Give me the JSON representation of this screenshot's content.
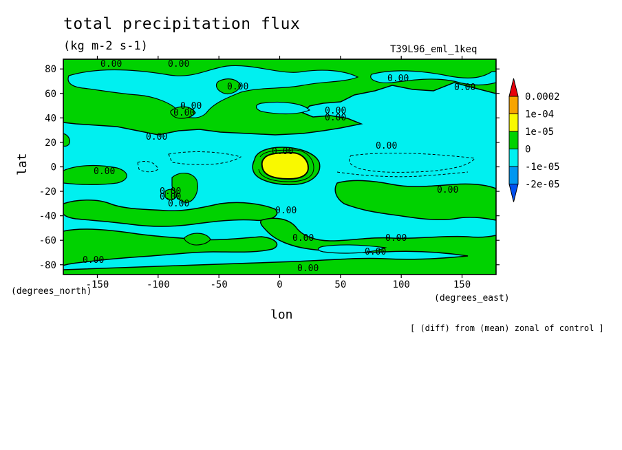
{
  "chart_data": {
    "type": "heatmap",
    "title": "total precipitation flux",
    "subtitle": "(kg m-2 s-1)",
    "run_label": "T39L96_eml_1keq",
    "footnote": "[ (diff) from (mean) zonal of control ]",
    "xlabel": "lon",
    "ylabel": "lat",
    "x_unit_label": "(degrees_east)",
    "y_unit_label": "(degrees_north)",
    "xlim": [
      -178,
      178
    ],
    "ylim": [
      -88,
      88
    ],
    "x_ticks": [
      -150,
      -100,
      -50,
      0,
      50,
      100,
      150
    ],
    "y_ticks": [
      -80,
      -60,
      -40,
      -20,
      0,
      20,
      40,
      60,
      80
    ],
    "x_tick_labels": [
      "-150",
      "-100",
      "-50",
      "0",
      "50",
      "100",
      "150"
    ],
    "y_tick_labels": [
      "-80",
      "-60",
      "-40",
      "-20",
      "0",
      "20",
      "40",
      "60",
      "80"
    ],
    "colorbar": {
      "levels": [
        "0.0002",
        "1e-04",
        "1e-05",
        "0",
        "-1e-05",
        "-2e-05"
      ],
      "colors": [
        "#e8000b",
        "#f7a400",
        "#f9f900",
        "#00d200",
        "#00f0f0",
        "#0097f0",
        "#0050f0"
      ]
    },
    "contour_label": "0.00",
    "regions": [
      {
        "name": "background",
        "level": "-1e-05 to 0",
        "color": "#00f0f0"
      },
      {
        "name": "positive anomaly bands",
        "level": "0 to 1e-05",
        "color": "#00d200"
      },
      {
        "name": "central maximum",
        "center": [
          0,
          0
        ],
        "level": "1e-05 to 1e-04",
        "color": "#f9f900"
      }
    ]
  }
}
